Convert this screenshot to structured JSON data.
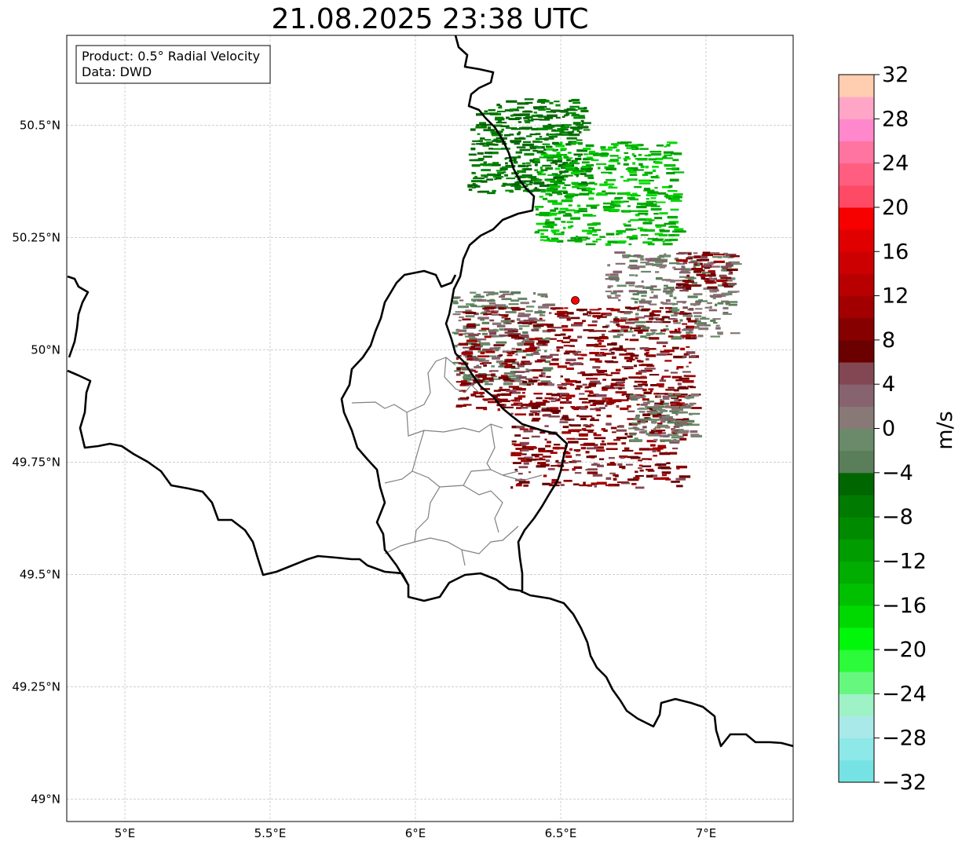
{
  "title": "21.08.2025 23:38 UTC",
  "info_box": {
    "product": "Product: 0.5° Radial Velocity",
    "data": "Data: DWD"
  },
  "map": {
    "lon_range": [
      4.8,
      7.3
    ],
    "lat_range": [
      48.95,
      50.7
    ],
    "x_ticks": [
      {
        "value": 5.0,
        "label": "5°E"
      },
      {
        "value": 5.5,
        "label": "5.5°E"
      },
      {
        "value": 6.0,
        "label": "6°E"
      },
      {
        "value": 6.5,
        "label": "6.5°E"
      },
      {
        "value": 7.0,
        "label": "7°E"
      }
    ],
    "y_ticks": [
      {
        "value": 49.0,
        "label": "49°N"
      },
      {
        "value": 49.25,
        "label": "49.25°N"
      },
      {
        "value": 49.5,
        "label": "49.5°N"
      },
      {
        "value": 49.75,
        "label": "49.75°N"
      },
      {
        "value": 50.0,
        "label": "50°N"
      },
      {
        "value": 50.25,
        "label": "50.25°N"
      },
      {
        "value": 50.5,
        "label": "50.5°N"
      }
    ],
    "grid": true,
    "radar_site": {
      "lon": 6.55,
      "lat": 50.11,
      "color": "#ff0000"
    },
    "border_color": "#000000",
    "admin_border_color": "#808080"
  },
  "colorbar": {
    "label": "m/s",
    "min": -32,
    "max": 32,
    "step": 2,
    "tick_values": [
      -32,
      -28,
      -24,
      -20,
      -16,
      -12,
      -8,
      -4,
      0,
      4,
      8,
      12,
      16,
      20,
      24,
      28,
      32
    ],
    "tick_labels": [
      "−32",
      "−28",
      "−24",
      "−20",
      "−16",
      "−12",
      "−8",
      "−4",
      "0",
      "4",
      "8",
      "12",
      "16",
      "20",
      "24",
      "28",
      "32"
    ],
    "colors": [
      "#75e3e3",
      "#8de8e8",
      "#aae9e9",
      "#9ef2c6",
      "#66f77f",
      "#2cfb3a",
      "#00f70a",
      "#00d900",
      "#00c000",
      "#00ad00",
      "#009c00",
      "#008a00",
      "#007a00",
      "#006600",
      "#5a7e5a",
      "#6a8a6a",
      "#887977",
      "#87636f",
      "#824752",
      "#6a0000",
      "#860000",
      "#a20000",
      "#b80000",
      "#cc0000",
      "#e00000",
      "#f70000",
      "#ff4a66",
      "#ff5e80",
      "#ff74a0",
      "#ff88cc",
      "#ffa6c6",
      "#ffcdaf"
    ]
  }
}
